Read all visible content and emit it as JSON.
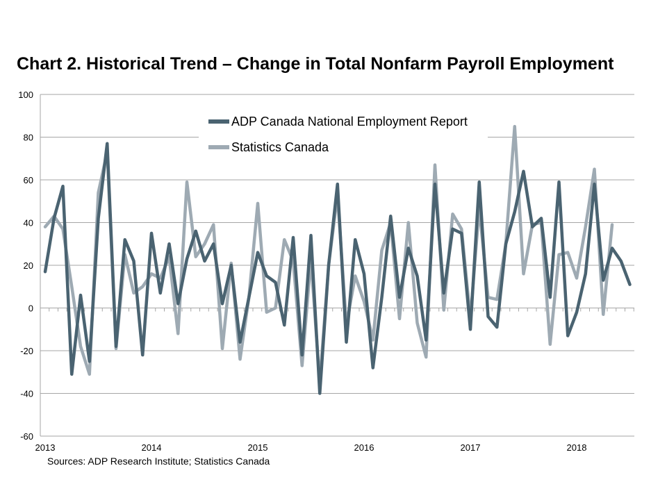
{
  "chart_data": {
    "type": "line",
    "title": "Chart 2. Historical Trend – Change in Total Nonfarm Payroll Employment",
    "source": "Sources: ADP Research Institute; Statistics Canada",
    "xlabel": "",
    "ylabel": "",
    "ylim": [
      -60,
      100
    ],
    "yticks": [
      -60,
      -40,
      -20,
      0,
      20,
      40,
      60,
      80,
      100
    ],
    "xticks": [
      "2013",
      "2014",
      "2015",
      "2016",
      "2017",
      "2018"
    ],
    "x_start": "2013-01",
    "legend_position": "top-center",
    "grid": "horizontal",
    "series": [
      {
        "name": "ADP Canada National Employment Report",
        "color": "#4a6371",
        "values": [
          17,
          42,
          57,
          -31,
          6,
          -25,
          42,
          77,
          -18,
          32,
          22,
          -22,
          35,
          7,
          30,
          2,
          23,
          36,
          22,
          30,
          2,
          20,
          -16,
          5,
          26,
          15,
          12,
          -8,
          33,
          -22,
          34,
          -40,
          20,
          58,
          -16,
          32,
          16,
          -28,
          5,
          43,
          5,
          28,
          15,
          -15,
          58,
          7,
          37,
          35,
          -10,
          59,
          -4,
          -9,
          30,
          45,
          64,
          38,
          42,
          5,
          59,
          -13,
          -2,
          16,
          58,
          13,
          28,
          22,
          11
        ]
      },
      {
        "name": "Statistics Canada",
        "color": "#9eaab3",
        "values": [
          38,
          43,
          37,
          10,
          -18,
          -31,
          54,
          73,
          -19,
          25,
          7,
          10,
          16,
          14,
          24,
          -12,
          59,
          24,
          30,
          39,
          -19,
          21,
          -24,
          5,
          49,
          -2,
          0,
          32,
          22,
          -27,
          23,
          -35,
          20,
          53,
          -8,
          15,
          3,
          -15,
          27,
          40,
          -5,
          40,
          -7,
          -23,
          67,
          -1,
          44,
          37,
          -5,
          47,
          5,
          4,
          30,
          85,
          16,
          39,
          40,
          -17,
          25,
          26,
          14,
          38,
          65,
          -3,
          39
        ]
      }
    ]
  }
}
